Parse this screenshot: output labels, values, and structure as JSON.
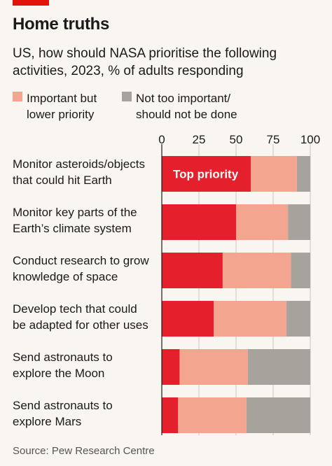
{
  "title": "Home truths",
  "subtitle": "US, how should NASA prioritise the following activities, 2023, % of adults responding",
  "legend": [
    {
      "label": "Important but\nlower priority",
      "color": "#f4a58f"
    },
    {
      "label": "Not too important/\nshould not be done",
      "color": "#a5a39c"
    }
  ],
  "source": "Source: Pew Research Centre",
  "chart_data": {
    "type": "bar",
    "orientation": "horizontal",
    "stacked": true,
    "categories": [
      "Monitor asteroids/objects that could hit Earth",
      "Monitor key parts of the Earth’s climate system",
      "Conduct research to grow knowledge of space",
      "Develop tech that could be adapted for other uses",
      "Send astronauts to explore the Moon",
      "Send astronauts to explore Mars"
    ],
    "series": [
      {
        "name": "Top priority",
        "color": "#e3202c",
        "values": [
          60,
          50,
          41,
          35,
          12,
          11
        ]
      },
      {
        "name": "Important but lower priority",
        "color": "#f4a58f",
        "values": [
          31,
          35,
          46,
          49,
          46,
          46
        ]
      },
      {
        "name": "Not too important/should not be done",
        "color": "#a5a39c",
        "values": [
          10,
          16,
          15,
          17,
          44,
          45
        ]
      }
    ],
    "bar_label": "Top priority",
    "xlim": [
      0,
      100
    ],
    "xticks": [
      0,
      25,
      50,
      75,
      100
    ],
    "grid": true,
    "legend_position": "top-left"
  }
}
